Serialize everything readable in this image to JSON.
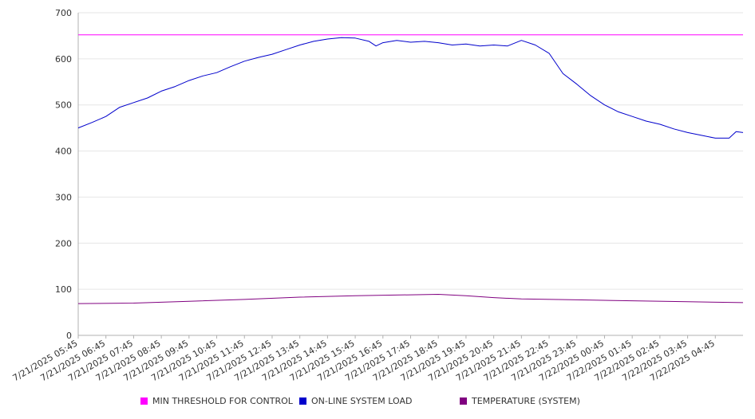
{
  "chart_data": {
    "type": "line",
    "title": "",
    "xlabel": "",
    "ylabel": "",
    "ylim": [
      0,
      700
    ],
    "yticks": [
      0,
      100,
      200,
      300,
      400,
      500,
      600,
      700
    ],
    "grid": "horizontal",
    "legend_position": "bottom",
    "x_tick_labels": [
      "7/21/2025 05:45",
      "7/21/2025 06:45",
      "7/21/2025 07:45",
      "7/21/2025 08:45",
      "7/21/2025 09:45",
      "7/21/2025 10:45",
      "7/21/2025 11:45",
      "7/21/2025 12:45",
      "7/21/2025 13:45",
      "7/21/2025 14:45",
      "7/21/2025 15:45",
      "7/21/2025 16:45",
      "7/21/2025 17:45",
      "7/21/2025 18:45",
      "7/21/2025 19:45",
      "7/21/2025 20:45",
      "7/21/2025 21:45",
      "7/21/2025 22:45",
      "7/21/2025 23:45",
      "7/22/2025 00:45",
      "7/22/2025 01:45",
      "7/22/2025 02:45",
      "7/22/2025 03:45",
      "7/22/2025 04:45"
    ],
    "x_range": [
      "7/21/2025 05:45",
      "7/22/2025 05:45"
    ],
    "series": [
      {
        "name": "MIN THRESHOLD FOR CONTROL",
        "color": "#ff00ff",
        "points": [
          [
            "7/21/2025 05:45",
            652
          ],
          [
            "7/22/2025 05:45",
            652
          ]
        ]
      },
      {
        "name": "ON-LINE SYSTEM LOAD",
        "color": "#0000cc",
        "points": [
          [
            "7/21/2025 05:45",
            450
          ],
          [
            "7/21/2025 06:15",
            462
          ],
          [
            "7/21/2025 06:45",
            475
          ],
          [
            "7/21/2025 07:15",
            495
          ],
          [
            "7/21/2025 07:45",
            505
          ],
          [
            "7/21/2025 08:15",
            515
          ],
          [
            "7/21/2025 08:45",
            530
          ],
          [
            "7/21/2025 09:15",
            540
          ],
          [
            "7/21/2025 09:45",
            553
          ],
          [
            "7/21/2025 10:15",
            563
          ],
          [
            "7/21/2025 10:45",
            570
          ],
          [
            "7/21/2025 11:15",
            583
          ],
          [
            "7/21/2025 11:45",
            595
          ],
          [
            "7/21/2025 12:15",
            603
          ],
          [
            "7/21/2025 12:45",
            610
          ],
          [
            "7/21/2025 13:15",
            620
          ],
          [
            "7/21/2025 13:45",
            630
          ],
          [
            "7/21/2025 14:15",
            638
          ],
          [
            "7/21/2025 14:45",
            643
          ],
          [
            "7/21/2025 15:15",
            646
          ],
          [
            "7/21/2025 15:45",
            645
          ],
          [
            "7/21/2025 16:15",
            638
          ],
          [
            "7/21/2025 16:30",
            628
          ],
          [
            "7/21/2025 16:45",
            635
          ],
          [
            "7/21/2025 17:15",
            640
          ],
          [
            "7/21/2025 17:45",
            636
          ],
          [
            "7/21/2025 18:15",
            638
          ],
          [
            "7/21/2025 18:45",
            635
          ],
          [
            "7/21/2025 19:15",
            630
          ],
          [
            "7/21/2025 19:45",
            632
          ],
          [
            "7/21/2025 20:15",
            628
          ],
          [
            "7/21/2025 20:45",
            630
          ],
          [
            "7/21/2025 21:15",
            628
          ],
          [
            "7/21/2025 21:45",
            640
          ],
          [
            "7/21/2025 22:15",
            630
          ],
          [
            "7/21/2025 22:45",
            612
          ],
          [
            "7/21/2025 23:00",
            590
          ],
          [
            "7/21/2025 23:15",
            568
          ],
          [
            "7/21/2025 23:45",
            545
          ],
          [
            "7/22/2025 00:15",
            520
          ],
          [
            "7/22/2025 00:45",
            500
          ],
          [
            "7/22/2025 01:15",
            485
          ],
          [
            "7/22/2025 01:45",
            475
          ],
          [
            "7/22/2025 02:15",
            465
          ],
          [
            "7/22/2025 02:45",
            458
          ],
          [
            "7/22/2025 03:15",
            448
          ],
          [
            "7/22/2025 03:45",
            440
          ],
          [
            "7/22/2025 04:15",
            434
          ],
          [
            "7/22/2025 04:45",
            428
          ],
          [
            "7/22/2025 05:15",
            428
          ],
          [
            "7/22/2025 05:30",
            442
          ],
          [
            "7/22/2025 05:45",
            440
          ]
        ]
      },
      {
        "name": "TEMPERATURE (SYSTEM)",
        "color": "#800080",
        "points": [
          [
            "7/21/2025 05:45",
            69
          ],
          [
            "7/21/2025 07:45",
            70
          ],
          [
            "7/21/2025 09:45",
            74
          ],
          [
            "7/21/2025 11:45",
            78
          ],
          [
            "7/21/2025 13:45",
            83
          ],
          [
            "7/21/2025 15:45",
            86
          ],
          [
            "7/21/2025 17:45",
            88
          ],
          [
            "7/21/2025 18:45",
            89
          ],
          [
            "7/21/2025 19:45",
            86
          ],
          [
            "7/21/2025 20:45",
            82
          ],
          [
            "7/21/2025 21:45",
            79
          ],
          [
            "7/21/2025 23:45",
            77
          ],
          [
            "7/22/2025 01:45",
            75
          ],
          [
            "7/22/2025 03:45",
            73
          ],
          [
            "7/22/2025 05:45",
            71
          ]
        ]
      }
    ]
  }
}
